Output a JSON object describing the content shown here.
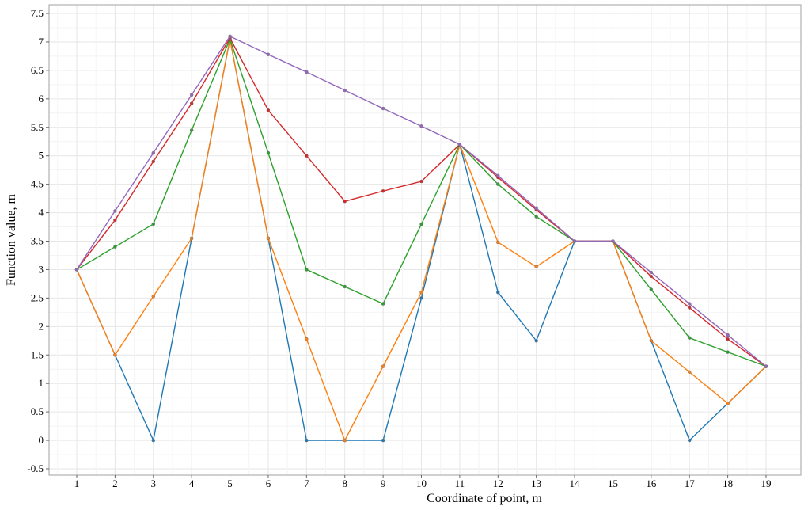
{
  "chart_data": {
    "type": "line",
    "title": "",
    "xlabel": "Coordinate of point, m",
    "ylabel": "Function value, m",
    "x": [
      1,
      2,
      3,
      4,
      5,
      6,
      7,
      8,
      9,
      10,
      11,
      12,
      13,
      14,
      15,
      16,
      17,
      18,
      19
    ],
    "xlim": [
      0.3,
      19.8
    ],
    "ylim": [
      -0.5,
      7.5
    ],
    "yticks": [
      -0.5,
      0,
      0.5,
      1,
      1.5,
      2,
      2.5,
      3,
      3.5,
      4,
      4.5,
      5,
      5.5,
      6,
      6.5,
      7,
      7.5
    ],
    "grid": true,
    "series": [
      {
        "color": "#1f77b4",
        "values": [
          3,
          1.5,
          0,
          3.55,
          7.05,
          3.55,
          0,
          0,
          0,
          2.5,
          5.2,
          2.6,
          1.75,
          3.5,
          3.5,
          1.75,
          0,
          0.65,
          1.3
        ]
      },
      {
        "color": "#ff7f0e",
        "values": [
          3,
          1.5,
          2.53,
          3.55,
          7.05,
          3.55,
          1.78,
          0,
          1.3,
          2.6,
          5.2,
          3.48,
          3.05,
          3.5,
          3.5,
          1.75,
          1.2,
          0.65,
          1.3
        ]
      },
      {
        "color": "#2ca02c",
        "values": [
          3,
          3.4,
          3.8,
          5.45,
          7.05,
          5.05,
          3.0,
          2.7,
          2.4,
          3.8,
          5.2,
          4.5,
          3.93,
          3.5,
          3.5,
          2.65,
          1.8,
          1.55,
          1.3
        ]
      },
      {
        "color": "#d62728",
        "values": [
          3,
          3.87,
          4.9,
          5.92,
          7.07,
          5.8,
          5.0,
          4.2,
          4.38,
          4.55,
          5.2,
          4.62,
          4.05,
          3.5,
          3.5,
          2.88,
          2.33,
          1.78,
          1.3
        ]
      },
      {
        "color": "#9467bd",
        "values": [
          3,
          4.03,
          5.05,
          6.07,
          7.1,
          6.78,
          6.47,
          6.15,
          5.83,
          5.52,
          5.2,
          4.65,
          4.08,
          3.5,
          3.5,
          2.95,
          2.4,
          1.85,
          1.3
        ]
      }
    ]
  }
}
